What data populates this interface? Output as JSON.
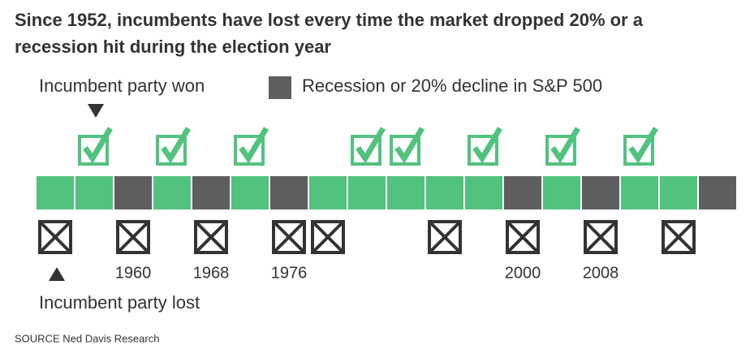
{
  "title": "Since 1952, incumbents have lost every time the market dropped 20% or a recession hit during the election year",
  "legend": {
    "won": "Incumbent party won",
    "lost": "Incumbent party lost",
    "recession": "Recession or 20% decline in S&P 500"
  },
  "colors": {
    "normal": "#52c27f",
    "recession": "#5e5e5e",
    "icon": "#52c27f",
    "lost_icon": "#333333"
  },
  "timeline": [
    {
      "label": null,
      "recession": false,
      "outcome": "lost"
    },
    {
      "label": null,
      "recession": false,
      "outcome": "won"
    },
    {
      "label": "1960",
      "recession": true,
      "outcome": "lost"
    },
    {
      "label": null,
      "recession": false,
      "outcome": "won"
    },
    {
      "label": "1968",
      "recession": true,
      "outcome": "lost"
    },
    {
      "label": null,
      "recession": false,
      "outcome": "won"
    },
    {
      "label": "1976",
      "recession": true,
      "outcome": "lost"
    },
    {
      "label": null,
      "recession": false,
      "outcome": "lost"
    },
    {
      "label": null,
      "recession": false,
      "outcome": "won"
    },
    {
      "label": null,
      "recession": false,
      "outcome": "won"
    },
    {
      "label": null,
      "recession": false,
      "outcome": "lost"
    },
    {
      "label": null,
      "recession": false,
      "outcome": "won"
    },
    {
      "label": "2000",
      "recession": true,
      "outcome": "lost"
    },
    {
      "label": null,
      "recession": false,
      "outcome": "won"
    },
    {
      "label": "2008",
      "recession": true,
      "outcome": "lost"
    },
    {
      "label": null,
      "recession": false,
      "outcome": "won"
    },
    {
      "label": null,
      "recession": false,
      "outcome": "lost"
    },
    {
      "label": null,
      "recession": true,
      "outcome": null
    }
  ],
  "source": "SOURCE Ned Davis Research"
}
